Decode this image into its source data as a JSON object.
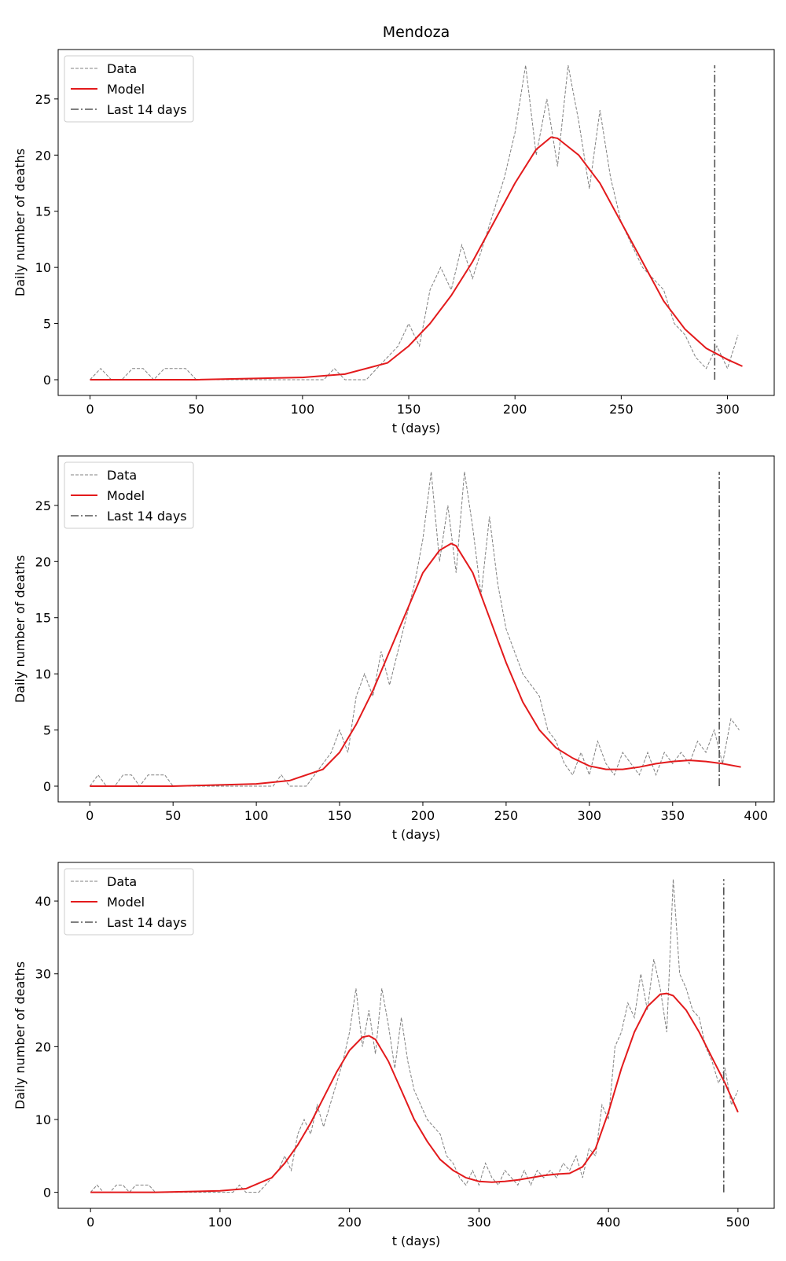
{
  "chart_data": [
    {
      "type": "line",
      "title": "Mendoza",
      "xlabel": "t (days)",
      "ylabel": "Daily number of deaths",
      "xlim": [
        -15,
        322
      ],
      "xticks": [
        0,
        50,
        100,
        150,
        200,
        250,
        300
      ],
      "ylim": [
        -1.4,
        29.4
      ],
      "yticks": [
        0,
        5,
        10,
        15,
        20,
        25
      ],
      "legend": "upper left",
      "series": [
        {
          "name": "Data",
          "color": "#808080",
          "x": [
            0,
            5,
            10,
            15,
            20,
            25,
            30,
            35,
            40,
            45,
            50,
            55,
            60,
            65,
            70,
            75,
            80,
            85,
            90,
            95,
            100,
            105,
            110,
            115,
            120,
            125,
            130,
            135,
            140,
            145,
            150,
            155,
            160,
            165,
            170,
            175,
            180,
            185,
            190,
            195,
            200,
            205,
            210,
            215,
            220,
            225,
            230,
            235,
            240,
            245,
            250,
            255,
            260,
            265,
            270,
            275,
            280,
            285,
            290,
            295,
            300,
            305
          ],
          "values": [
            0,
            1,
            0,
            0,
            1,
            1,
            0,
            1,
            1,
            1,
            0,
            0,
            0,
            0,
            0,
            0,
            0,
            0,
            0,
            0,
            0,
            0,
            0,
            1,
            0,
            0,
            0,
            1,
            2,
            3,
            5,
            3,
            8,
            10,
            8,
            12,
            9,
            12,
            15,
            18,
            22,
            28,
            20,
            25,
            19,
            28,
            23,
            17,
            24,
            18,
            14,
            12,
            10,
            9,
            8,
            5,
            4,
            2,
            1,
            3,
            1,
            4
          ]
        },
        {
          "name": "Model",
          "color": "#e31a1c",
          "x": [
            0,
            50,
            100,
            120,
            140,
            150,
            160,
            170,
            180,
            190,
            200,
            210,
            217,
            220,
            230,
            240,
            250,
            260,
            270,
            280,
            290,
            300,
            307
          ],
          "values": [
            0,
            0,
            0.2,
            0.5,
            1.5,
            3,
            5,
            7.5,
            10.5,
            14,
            17.5,
            20.5,
            21.6,
            21.5,
            20,
            17.5,
            14,
            10.5,
            7,
            4.5,
            2.8,
            1.8,
            1.2
          ]
        },
        {
          "name": "Last 14 days",
          "color": "#555555",
          "x": [
            294,
            294
          ],
          "values": [
            0,
            28
          ]
        }
      ]
    },
    {
      "type": "line",
      "xlabel": "t (days)",
      "ylabel": "Daily number of deaths",
      "xlim": [
        -19,
        411
      ],
      "xticks": [
        0,
        50,
        100,
        150,
        200,
        250,
        300,
        350,
        400
      ],
      "ylim": [
        -1.4,
        29.4
      ],
      "yticks": [
        0,
        5,
        10,
        15,
        20,
        25
      ],
      "legend": "upper left",
      "series": [
        {
          "name": "Data",
          "color": "#808080",
          "x": [
            0,
            5,
            10,
            15,
            20,
            25,
            30,
            35,
            40,
            45,
            50,
            55,
            60,
            65,
            70,
            75,
            80,
            85,
            90,
            95,
            100,
            105,
            110,
            115,
            120,
            125,
            130,
            135,
            140,
            145,
            150,
            155,
            160,
            165,
            170,
            175,
            180,
            185,
            190,
            195,
            200,
            205,
            210,
            215,
            220,
            225,
            230,
            235,
            240,
            245,
            250,
            255,
            260,
            265,
            270,
            275,
            280,
            285,
            290,
            295,
            300,
            305,
            310,
            315,
            320,
            325,
            330,
            335,
            340,
            345,
            350,
            355,
            360,
            365,
            370,
            375,
            380,
            385,
            390
          ],
          "values": [
            0,
            1,
            0,
            0,
            1,
            1,
            0,
            1,
            1,
            1,
            0,
            0,
            0,
            0,
            0,
            0,
            0,
            0,
            0,
            0,
            0,
            0,
            0,
            1,
            0,
            0,
            0,
            1,
            2,
            3,
            5,
            3,
            8,
            10,
            8,
            12,
            9,
            12,
            15,
            18,
            22,
            28,
            20,
            25,
            19,
            28,
            23,
            17,
            24,
            18,
            14,
            12,
            10,
            9,
            8,
            5,
            4,
            2,
            1,
            3,
            1,
            4,
            2,
            1,
            3,
            2,
            1,
            3,
            1,
            3,
            2,
            3,
            2,
            4,
            3,
            5,
            2,
            6,
            5
          ]
        },
        {
          "name": "Model",
          "color": "#e31a1c",
          "x": [
            0,
            50,
            100,
            120,
            140,
            150,
            160,
            170,
            180,
            190,
            200,
            210,
            217,
            220,
            230,
            240,
            250,
            260,
            270,
            280,
            290,
            300,
            310,
            320,
            330,
            340,
            350,
            360,
            370,
            380,
            391
          ],
          "values": [
            0,
            0,
            0.2,
            0.5,
            1.5,
            3,
            5.5,
            8.5,
            12,
            15.5,
            19,
            21,
            21.6,
            21.4,
            19,
            15,
            11,
            7.5,
            5,
            3.4,
            2.5,
            1.8,
            1.5,
            1.5,
            1.7,
            2,
            2.2,
            2.3,
            2.2,
            2.0,
            1.7
          ]
        },
        {
          "name": "Last 14 days",
          "color": "#555555",
          "x": [
            378,
            378
          ],
          "values": [
            0,
            28
          ]
        }
      ]
    },
    {
      "type": "line",
      "xlabel": "t (days)",
      "ylabel": "Daily number of deaths",
      "xlim": [
        -25,
        528
      ],
      "xticks": [
        0,
        100,
        200,
        300,
        400,
        500
      ],
      "ylim": [
        -2.2,
        45.3
      ],
      "yticks": [
        0,
        10,
        20,
        30,
        40
      ],
      "legend": "upper left",
      "series": [
        {
          "name": "Data",
          "color": "#808080",
          "x": [
            0,
            5,
            10,
            15,
            20,
            25,
            30,
            35,
            40,
            45,
            50,
            55,
            60,
            65,
            70,
            75,
            80,
            85,
            90,
            95,
            100,
            105,
            110,
            115,
            120,
            125,
            130,
            135,
            140,
            145,
            150,
            155,
            160,
            165,
            170,
            175,
            180,
            185,
            190,
            195,
            200,
            205,
            210,
            215,
            220,
            225,
            230,
            235,
            240,
            245,
            250,
            255,
            260,
            265,
            270,
            275,
            280,
            285,
            290,
            295,
            300,
            305,
            310,
            315,
            320,
            325,
            330,
            335,
            340,
            345,
            350,
            355,
            360,
            365,
            370,
            375,
            380,
            385,
            390,
            395,
            400,
            405,
            410,
            415,
            420,
            425,
            430,
            435,
            440,
            445,
            450,
            455,
            460,
            465,
            470,
            475,
            480,
            485,
            490,
            495,
            500
          ],
          "values": [
            0,
            1,
            0,
            0,
            1,
            1,
            0,
            1,
            1,
            1,
            0,
            0,
            0,
            0,
            0,
            0,
            0,
            0,
            0,
            0,
            0,
            0,
            0,
            1,
            0,
            0,
            0,
            1,
            2,
            3,
            5,
            3,
            8,
            10,
            8,
            12,
            9,
            12,
            15,
            18,
            22,
            28,
            20,
            25,
            19,
            28,
            23,
            17,
            24,
            18,
            14,
            12,
            10,
            9,
            8,
            5,
            4,
            2,
            1,
            3,
            1,
            4,
            2,
            1,
            3,
            2,
            1,
            3,
            1,
            3,
            2,
            3,
            2,
            4,
            3,
            5,
            2,
            6,
            5,
            12,
            10,
            20,
            22,
            26,
            24,
            30,
            25,
            32,
            28,
            22,
            43,
            30,
            28,
            25,
            24,
            20,
            18,
            15,
            17,
            12,
            14
          ]
        },
        {
          "name": "Model",
          "color": "#e31a1c",
          "x": [
            0,
            50,
            100,
            120,
            140,
            150,
            160,
            170,
            180,
            190,
            200,
            210,
            215,
            220,
            230,
            240,
            250,
            260,
            270,
            280,
            290,
            300,
            310,
            320,
            330,
            340,
            350,
            360,
            370,
            380,
            390,
            400,
            410,
            420,
            430,
            440,
            445,
            450,
            460,
            470,
            480,
            490,
            500
          ],
          "values": [
            0,
            0,
            0.2,
            0.5,
            2,
            4,
            6.5,
            9.5,
            13,
            16.5,
            19.5,
            21.3,
            21.5,
            21,
            18,
            14,
            10,
            7,
            4.5,
            3,
            2,
            1.5,
            1.4,
            1.5,
            1.7,
            2,
            2.3,
            2.5,
            2.6,
            3.5,
            6,
            11,
            17,
            22,
            25.5,
            27.2,
            27.3,
            27,
            25,
            22,
            18.5,
            15,
            11
          ]
        },
        {
          "name": "Last 14 days",
          "color": "#555555",
          "x": [
            489,
            489
          ],
          "values": [
            0,
            43
          ]
        }
      ]
    }
  ]
}
